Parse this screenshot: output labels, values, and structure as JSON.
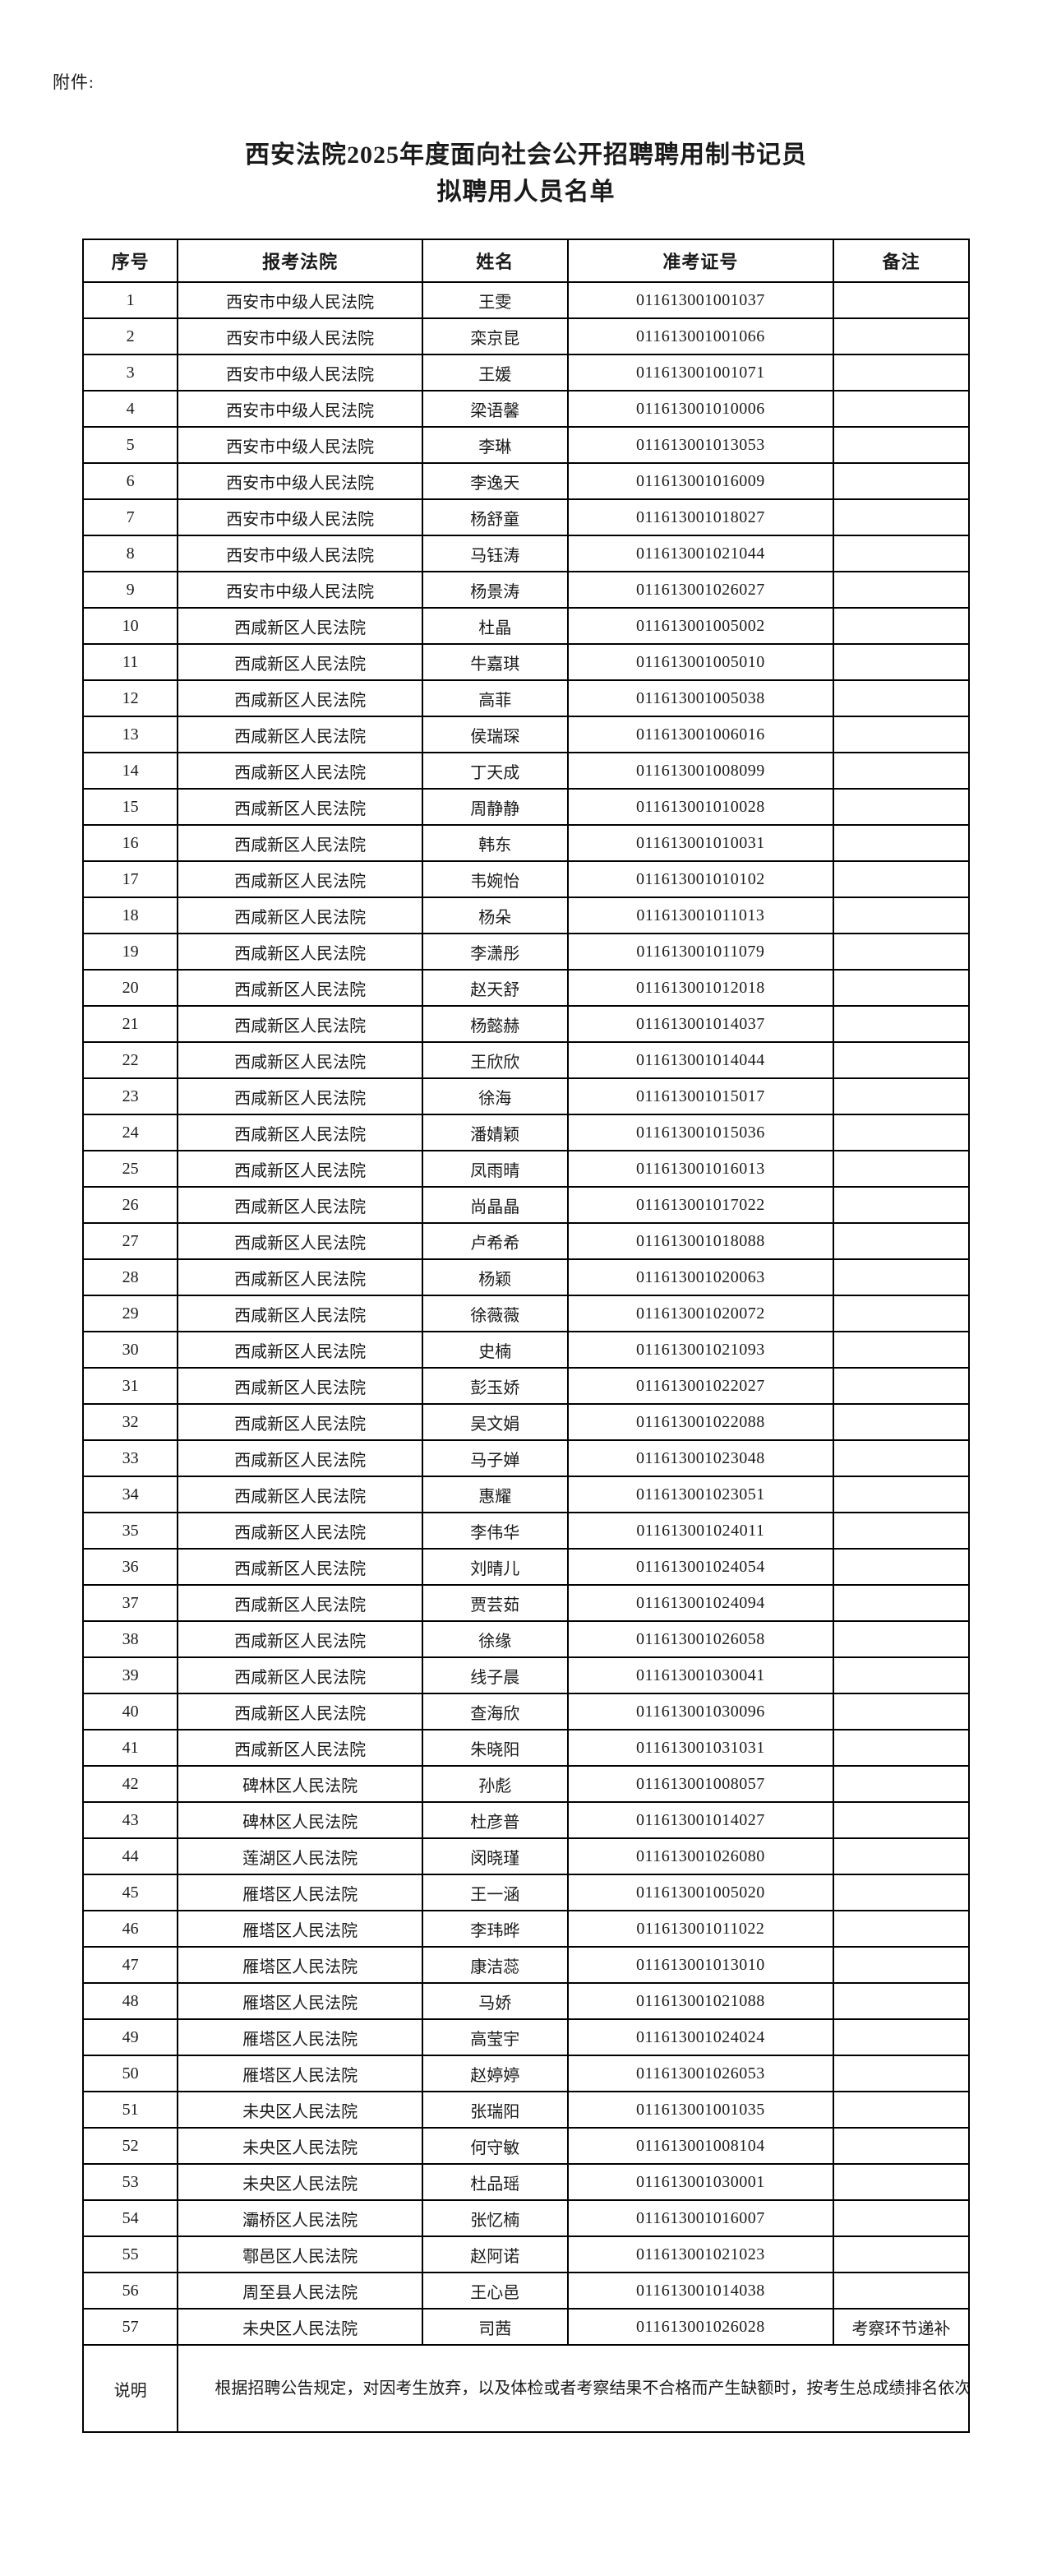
{
  "attachment_label": "附件:",
  "title": {
    "line1": "西安法院2025年度面向社会公开招聘聘用制书记员",
    "line2": "拟聘用人员名单"
  },
  "table": {
    "headers": [
      "序号",
      "报考法院",
      "姓名",
      "准考证号",
      "备注"
    ],
    "rows": [
      {
        "index": "1",
        "court": "西安市中级人民法院",
        "name": "王雯",
        "ticket": "011613001001037",
        "remark": ""
      },
      {
        "index": "2",
        "court": "西安市中级人民法院",
        "name": "栾京昆",
        "ticket": "011613001001066",
        "remark": ""
      },
      {
        "index": "3",
        "court": "西安市中级人民法院",
        "name": "王媛",
        "ticket": "011613001001071",
        "remark": ""
      },
      {
        "index": "4",
        "court": "西安市中级人民法院",
        "name": "梁语馨",
        "ticket": "011613001010006",
        "remark": ""
      },
      {
        "index": "5",
        "court": "西安市中级人民法院",
        "name": "李琳",
        "ticket": "011613001013053",
        "remark": ""
      },
      {
        "index": "6",
        "court": "西安市中级人民法院",
        "name": "李逸天",
        "ticket": "011613001016009",
        "remark": ""
      },
      {
        "index": "7",
        "court": "西安市中级人民法院",
        "name": "杨舒童",
        "ticket": "011613001018027",
        "remark": ""
      },
      {
        "index": "8",
        "court": "西安市中级人民法院",
        "name": "马钰涛",
        "ticket": "011613001021044",
        "remark": ""
      },
      {
        "index": "9",
        "court": "西安市中级人民法院",
        "name": "杨景涛",
        "ticket": "011613001026027",
        "remark": ""
      },
      {
        "index": "10",
        "court": "西咸新区人民法院",
        "name": "杜晶",
        "ticket": "011613001005002",
        "remark": ""
      },
      {
        "index": "11",
        "court": "西咸新区人民法院",
        "name": "牛嘉琪",
        "ticket": "011613001005010",
        "remark": ""
      },
      {
        "index": "12",
        "court": "西咸新区人民法院",
        "name": "高菲",
        "ticket": "011613001005038",
        "remark": ""
      },
      {
        "index": "13",
        "court": "西咸新区人民法院",
        "name": "侯瑞琛",
        "ticket": "011613001006016",
        "remark": ""
      },
      {
        "index": "14",
        "court": "西咸新区人民法院",
        "name": "丁天成",
        "ticket": "011613001008099",
        "remark": ""
      },
      {
        "index": "15",
        "court": "西咸新区人民法院",
        "name": "周静静",
        "ticket": "011613001010028",
        "remark": ""
      },
      {
        "index": "16",
        "court": "西咸新区人民法院",
        "name": "韩东",
        "ticket": "011613001010031",
        "remark": ""
      },
      {
        "index": "17",
        "court": "西咸新区人民法院",
        "name": "韦婉怡",
        "ticket": "011613001010102",
        "remark": ""
      },
      {
        "index": "18",
        "court": "西咸新区人民法院",
        "name": "杨朵",
        "ticket": "011613001011013",
        "remark": ""
      },
      {
        "index": "19",
        "court": "西咸新区人民法院",
        "name": "李潇彤",
        "ticket": "011613001011079",
        "remark": ""
      },
      {
        "index": "20",
        "court": "西咸新区人民法院",
        "name": "赵天舒",
        "ticket": "011613001012018",
        "remark": ""
      },
      {
        "index": "21",
        "court": "西咸新区人民法院",
        "name": "杨懿赫",
        "ticket": "011613001014037",
        "remark": ""
      },
      {
        "index": "22",
        "court": "西咸新区人民法院",
        "name": "王欣欣",
        "ticket": "011613001014044",
        "remark": ""
      },
      {
        "index": "23",
        "court": "西咸新区人民法院",
        "name": "徐海",
        "ticket": "011613001015017",
        "remark": ""
      },
      {
        "index": "24",
        "court": "西咸新区人民法院",
        "name": "潘婧颖",
        "ticket": "011613001015036",
        "remark": ""
      },
      {
        "index": "25",
        "court": "西咸新区人民法院",
        "name": "凤雨晴",
        "ticket": "011613001016013",
        "remark": ""
      },
      {
        "index": "26",
        "court": "西咸新区人民法院",
        "name": "尚晶晶",
        "ticket": "011613001017022",
        "remark": ""
      },
      {
        "index": "27",
        "court": "西咸新区人民法院",
        "name": "卢希希",
        "ticket": "011613001018088",
        "remark": ""
      },
      {
        "index": "28",
        "court": "西咸新区人民法院",
        "name": "杨颖",
        "ticket": "011613001020063",
        "remark": ""
      },
      {
        "index": "29",
        "court": "西咸新区人民法院",
        "name": "徐薇薇",
        "ticket": "011613001020072",
        "remark": ""
      },
      {
        "index": "30",
        "court": "西咸新区人民法院",
        "name": "史楠",
        "ticket": "011613001021093",
        "remark": ""
      },
      {
        "index": "31",
        "court": "西咸新区人民法院",
        "name": "彭玉娇",
        "ticket": "011613001022027",
        "remark": ""
      },
      {
        "index": "32",
        "court": "西咸新区人民法院",
        "name": "吴文娟",
        "ticket": "011613001022088",
        "remark": ""
      },
      {
        "index": "33",
        "court": "西咸新区人民法院",
        "name": "马子婵",
        "ticket": "011613001023048",
        "remark": ""
      },
      {
        "index": "34",
        "court": "西咸新区人民法院",
        "name": "惠耀",
        "ticket": "011613001023051",
        "remark": ""
      },
      {
        "index": "35",
        "court": "西咸新区人民法院",
        "name": "李伟华",
        "ticket": "011613001024011",
        "remark": ""
      },
      {
        "index": "36",
        "court": "西咸新区人民法院",
        "name": "刘晴儿",
        "ticket": "011613001024054",
        "remark": ""
      },
      {
        "index": "37",
        "court": "西咸新区人民法院",
        "name": "贾芸茹",
        "ticket": "011613001024094",
        "remark": ""
      },
      {
        "index": "38",
        "court": "西咸新区人民法院",
        "name": "徐缘",
        "ticket": "011613001026058",
        "remark": ""
      },
      {
        "index": "39",
        "court": "西咸新区人民法院",
        "name": "线子晨",
        "ticket": "011613001030041",
        "remark": ""
      },
      {
        "index": "40",
        "court": "西咸新区人民法院",
        "name": "查海欣",
        "ticket": "011613001030096",
        "remark": ""
      },
      {
        "index": "41",
        "court": "西咸新区人民法院",
        "name": "朱晓阳",
        "ticket": "011613001031031",
        "remark": ""
      },
      {
        "index": "42",
        "court": "碑林区人民法院",
        "name": "孙彪",
        "ticket": "011613001008057",
        "remark": ""
      },
      {
        "index": "43",
        "court": "碑林区人民法院",
        "name": "杜彦普",
        "ticket": "011613001014027",
        "remark": ""
      },
      {
        "index": "44",
        "court": "莲湖区人民法院",
        "name": "闵晓瑾",
        "ticket": "011613001026080",
        "remark": ""
      },
      {
        "index": "45",
        "court": "雁塔区人民法院",
        "name": "王一涵",
        "ticket": "011613001005020",
        "remark": ""
      },
      {
        "index": "46",
        "court": "雁塔区人民法院",
        "name": "李玮晔",
        "ticket": "011613001011022",
        "remark": ""
      },
      {
        "index": "47",
        "court": "雁塔区人民法院",
        "name": "康洁蕊",
        "ticket": "011613001013010",
        "remark": ""
      },
      {
        "index": "48",
        "court": "雁塔区人民法院",
        "name": "马娇",
        "ticket": "011613001021088",
        "remark": ""
      },
      {
        "index": "49",
        "court": "雁塔区人民法院",
        "name": "高莹宇",
        "ticket": "011613001024024",
        "remark": ""
      },
      {
        "index": "50",
        "court": "雁塔区人民法院",
        "name": "赵婷婷",
        "ticket": "011613001026053",
        "remark": ""
      },
      {
        "index": "51",
        "court": "未央区人民法院",
        "name": "张瑞阳",
        "ticket": "011613001001035",
        "remark": ""
      },
      {
        "index": "52",
        "court": "未央区人民法院",
        "name": "何守敏",
        "ticket": "011613001008104",
        "remark": ""
      },
      {
        "index": "53",
        "court": "未央区人民法院",
        "name": "杜品瑶",
        "ticket": "011613001030001",
        "remark": ""
      },
      {
        "index": "54",
        "court": "灞桥区人民法院",
        "name": "张忆楠",
        "ticket": "011613001016007",
        "remark": ""
      },
      {
        "index": "55",
        "court": "鄠邑区人民法院",
        "name": "赵阿诺",
        "ticket": "011613001021023",
        "remark": ""
      },
      {
        "index": "56",
        "court": "周至县人民法院",
        "name": "王心邑",
        "ticket": "011613001014038",
        "remark": ""
      },
      {
        "index": "57",
        "court": "未央区人民法院",
        "name": "司茜",
        "ticket": "011613001026028",
        "remark": "考察环节递补"
      }
    ],
    "note_label": "说明",
    "note_text": "根据招聘公告规定，对因考生放弃，以及体检或者考察结果不合格而产生缺额时，按考生总成绩排名依次实施递补。"
  }
}
